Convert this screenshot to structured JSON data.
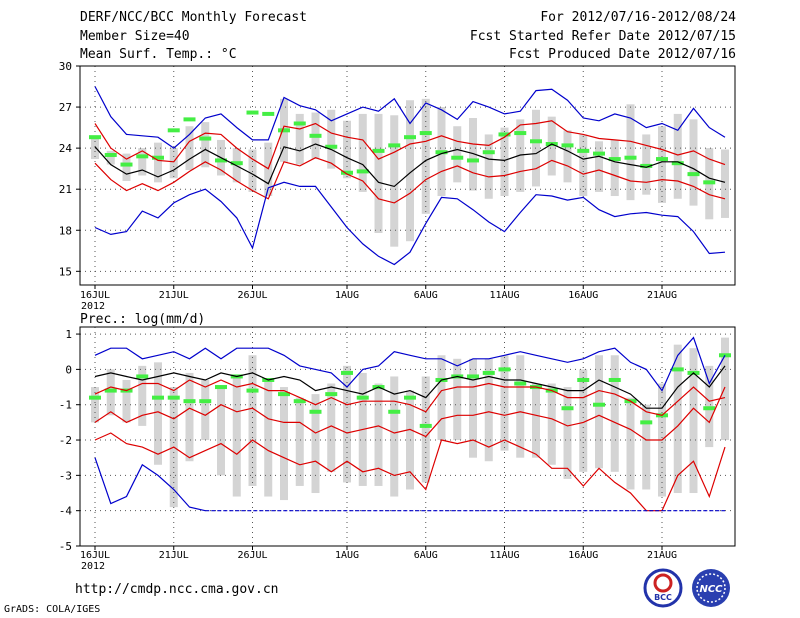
{
  "header": {
    "title": "DERF/NCC/BCC Monthly Forecast",
    "member_size": "Member Size=40",
    "variable_top": "Mean Surf. Temp.: °C",
    "for_range": "For 2012/07/16-2012/08/24",
    "started": "Fcst Started Refer Date 2012/07/15",
    "produced": "Fcst Produced Date 2012/07/16"
  },
  "footer": {
    "url": "http://cmdp.ncc.cma.gov.cn",
    "credit": "GrADS: COLA/IGES",
    "logo1_text": "BCC",
    "logo2_text": "NCC"
  },
  "colors": {
    "max_min": "#0000cc",
    "percentile": "#dd0000",
    "mean": "#000000",
    "obs_green": "#44ee44",
    "box_gray": "#d4d4d4"
  },
  "chart_data": [
    {
      "type": "line",
      "title": "Mean Surf. Temp.: °C",
      "x_ticks": [
        "16JUL\n2012",
        "21JUL",
        "26JUL",
        "1AUG",
        "6AUG",
        "11AUG",
        "16AUG",
        "21AUG"
      ],
      "x_tick_day_index": [
        0,
        5,
        10,
        16,
        21,
        26,
        31,
        36
      ],
      "days": 40,
      "ylim": [
        14,
        30
      ],
      "yticks": [
        15,
        18,
        21,
        24,
        27,
        30
      ],
      "series": [
        {
          "name": "max",
          "color": "blue",
          "values": [
            28.5,
            26.3,
            25.0,
            24.9,
            24.8,
            24.0,
            25.0,
            26.2,
            26.5,
            25.5,
            24.6,
            24.6,
            27.7,
            27.1,
            26.8,
            26.0,
            26.5,
            27.0,
            26.7,
            27.6,
            25.8,
            27.3,
            26.8,
            26.1,
            27.4,
            27.0,
            26.5,
            26.7,
            28.2,
            28.3,
            27.5,
            26.2,
            26.0,
            26.5,
            26.2,
            25.5,
            25.8,
            25.3,
            26.9,
            25.5,
            24.8
          ]
        },
        {
          "name": "p75",
          "color": "red",
          "values": [
            25.8,
            24.0,
            23.2,
            23.8,
            23.1,
            23.0,
            24.5,
            25.1,
            25.0,
            24.0,
            23.2,
            22.5,
            25.6,
            25.4,
            25.8,
            25.1,
            24.8,
            24.6,
            23.2,
            23.7,
            24.3,
            24.5,
            24.9,
            24.5,
            24.3,
            24.2,
            24.8,
            25.7,
            25.8,
            26.0,
            25.2,
            25.0,
            24.7,
            24.6,
            24.5,
            24.2,
            23.9,
            23.5,
            23.8,
            23.2,
            22.8
          ]
        },
        {
          "name": "mean",
          "color": "black",
          "values": [
            24.1,
            22.8,
            22.1,
            22.4,
            21.9,
            22.4,
            23.2,
            23.9,
            23.3,
            22.7,
            22.1,
            21.4,
            24.1,
            23.8,
            24.3,
            23.9,
            23.3,
            22.8,
            21.5,
            21.2,
            22.2,
            23.1,
            23.6,
            23.9,
            23.6,
            23.2,
            23.1,
            23.5,
            23.6,
            24.3,
            23.8,
            23.2,
            23.4,
            23.0,
            22.8,
            22.6,
            23.0,
            23.0,
            22.5,
            21.8,
            21.5
          ]
        },
        {
          "name": "p25",
          "color": "red",
          "values": [
            22.9,
            21.7,
            20.9,
            21.4,
            20.9,
            21.5,
            22.3,
            23.0,
            22.4,
            21.6,
            20.9,
            20.3,
            23.0,
            22.7,
            23.3,
            22.9,
            22.1,
            21.6,
            20.3,
            20.0,
            20.7,
            21.7,
            22.3,
            22.7,
            22.2,
            21.9,
            22.0,
            22.3,
            22.5,
            23.1,
            22.7,
            22.1,
            22.4,
            22.0,
            21.6,
            21.5,
            21.7,
            21.6,
            21.2,
            20.6,
            20.3
          ]
        },
        {
          "name": "min",
          "color": "blue",
          "values": [
            18.2,
            17.7,
            17.9,
            19.4,
            18.9,
            20.0,
            20.6,
            21.0,
            20.1,
            18.9,
            16.7,
            21.1,
            21.5,
            21.2,
            21.2,
            19.7,
            18.2,
            17.0,
            16.1,
            15.5,
            16.4,
            18.5,
            20.4,
            20.3,
            19.5,
            18.6,
            17.9,
            19.3,
            20.6,
            20.5,
            20.2,
            20.4,
            19.5,
            19.0,
            19.2,
            19.3,
            19.1,
            19.0,
            17.9,
            16.3,
            16.4
          ]
        }
      ],
      "box_ranges": [
        [
          23.2,
          24.8
        ],
        [
          22.8,
          23.8
        ],
        [
          21.6,
          23.6
        ],
        [
          22.0,
          24.0
        ],
        [
          21.5,
          24.4
        ],
        [
          21.8,
          24.0
        ],
        [
          22.4,
          25.6
        ],
        [
          22.6,
          25.9
        ],
        [
          22.0,
          24.6
        ],
        [
          21.5,
          24.0
        ],
        [
          20.8,
          23.9
        ],
        [
          20.5,
          24.4
        ],
        [
          23.0,
          27.6
        ],
        [
          22.8,
          26.5
        ],
        [
          23.2,
          26.6
        ],
        [
          22.5,
          26.8
        ],
        [
          21.8,
          26.0
        ],
        [
          20.8,
          26.5
        ],
        [
          17.8,
          26.5
        ],
        [
          16.8,
          26.4
        ],
        [
          17.2,
          27.5
        ],
        [
          19.2,
          27.6
        ],
        [
          20.5,
          27.0
        ],
        [
          21.5,
          25.6
        ],
        [
          20.9,
          26.2
        ],
        [
          20.3,
          25.0
        ],
        [
          20.5,
          25.5
        ],
        [
          20.8,
          26.1
        ],
        [
          21.2,
          26.8
        ],
        [
          22.0,
          26.3
        ],
        [
          21.5,
          25.3
        ],
        [
          20.5,
          25.0
        ],
        [
          20.8,
          24.5
        ],
        [
          20.5,
          24.6
        ],
        [
          20.2,
          27.2
        ],
        [
          20.6,
          25.0
        ],
        [
          20.0,
          25.6
        ],
        [
          20.3,
          26.5
        ],
        [
          19.8,
          26.1
        ],
        [
          18.8,
          24.0
        ],
        [
          18.9,
          23.9
        ]
      ],
      "green_marks": [
        [
          0,
          24.8
        ],
        [
          1,
          23.5
        ],
        [
          2,
          22.8
        ],
        [
          3,
          23.4
        ],
        [
          4,
          23.3
        ],
        [
          5,
          25.3
        ],
        [
          6,
          26.1
        ],
        [
          7,
          24.7
        ],
        [
          8,
          23.1
        ],
        [
          9,
          22.9
        ],
        [
          10,
          26.6
        ],
        [
          11,
          26.5
        ],
        [
          12,
          25.3
        ],
        [
          13,
          25.8
        ],
        [
          14,
          24.9
        ],
        [
          15,
          24.1
        ],
        [
          16,
          22.2
        ],
        [
          17,
          22.3
        ],
        [
          18,
          23.8
        ],
        [
          19,
          24.2
        ],
        [
          20,
          24.8
        ],
        [
          21,
          25.1
        ],
        [
          22,
          23.7
        ],
        [
          23,
          23.3
        ],
        [
          24,
          23.1
        ],
        [
          25,
          23.7
        ],
        [
          26,
          25.0
        ],
        [
          27,
          25.1
        ],
        [
          28,
          24.5
        ],
        [
          29,
          24.3
        ],
        [
          30,
          24.2
        ],
        [
          31,
          23.8
        ],
        [
          32,
          23.6
        ],
        [
          33,
          23.2
        ],
        [
          34,
          23.3
        ],
        [
          35,
          22.7
        ],
        [
          36,
          23.2
        ],
        [
          37,
          22.9
        ],
        [
          38,
          22.1
        ],
        [
          39,
          21.5
        ]
      ]
    },
    {
      "type": "line",
      "title": "Prec.: log(mm/d)",
      "x_ticks": [
        "16JUL\n2012",
        "21JUL",
        "26JUL",
        "1AUG",
        "6AUG",
        "11AUG",
        "16AUG",
        "21AUG"
      ],
      "x_tick_day_index": [
        0,
        5,
        10,
        16,
        21,
        26,
        31,
        36
      ],
      "days": 40,
      "ylim": [
        -5,
        1.2
      ],
      "yticks": [
        -5,
        -4,
        -3,
        -2,
        -1,
        0,
        1
      ],
      "series": [
        {
          "name": "max",
          "color": "blue",
          "values": [
            0.4,
            0.6,
            0.6,
            0.3,
            0.4,
            0.5,
            0.3,
            0.6,
            0.3,
            0.6,
            0.6,
            0.6,
            0.4,
            0.1,
            0.0,
            -0.1,
            -0.5,
            0.0,
            0.1,
            0.5,
            0.4,
            0.3,
            0.3,
            0.1,
            0.3,
            0.3,
            0.4,
            0.5,
            0.4,
            0.3,
            0.2,
            0.3,
            0.5,
            0.6,
            0.2,
            0.0,
            -0.6,
            0.4,
            0.9,
            -0.4,
            0.4
          ]
        },
        {
          "name": "p75",
          "color": "red",
          "values": [
            -0.7,
            -0.5,
            -0.6,
            -0.4,
            -0.4,
            -0.6,
            -0.3,
            -0.5,
            -0.3,
            -0.5,
            -0.4,
            -0.6,
            -0.6,
            -0.8,
            -1.0,
            -0.8,
            -1.0,
            -0.9,
            -0.9,
            -0.9,
            -1.0,
            -1.2,
            -0.6,
            -0.5,
            -0.5,
            -0.4,
            -0.5,
            -0.5,
            -0.5,
            -0.6,
            -0.8,
            -0.8,
            -0.6,
            -0.7,
            -0.9,
            -1.2,
            -1.3,
            -0.9,
            -0.5,
            -0.9,
            -0.8
          ]
        },
        {
          "name": "mean",
          "color": "black",
          "values": [
            -0.2,
            -0.1,
            -0.2,
            -0.3,
            -0.2,
            -0.1,
            -0.2,
            -0.3,
            -0.1,
            -0.2,
            -0.1,
            -0.3,
            -0.2,
            -0.3,
            -0.6,
            -0.5,
            -0.6,
            -0.7,
            -0.5,
            -0.7,
            -0.6,
            -0.8,
            -0.3,
            -0.2,
            -0.3,
            -0.2,
            -0.3,
            -0.3,
            -0.4,
            -0.5,
            -0.6,
            -0.6,
            -0.3,
            -0.5,
            -0.7,
            -1.1,
            -1.1,
            -0.5,
            -0.1,
            -0.5,
            0.1
          ]
        },
        {
          "name": "p25",
          "color": "red",
          "values": [
            -1.5,
            -1.2,
            -1.5,
            -1.3,
            -1.2,
            -1.4,
            -1.1,
            -1.3,
            -1.0,
            -1.2,
            -1.1,
            -1.4,
            -1.5,
            -1.5,
            -1.8,
            -1.6,
            -1.8,
            -1.7,
            -1.6,
            -1.8,
            -1.7,
            -1.9,
            -1.4,
            -1.3,
            -1.3,
            -1.2,
            -1.3,
            -1.2,
            -1.3,
            -1.4,
            -1.6,
            -1.5,
            -1.3,
            -1.5,
            -1.7,
            -2.0,
            -2.0,
            -1.6,
            -1.1,
            -1.5,
            -0.5
          ]
        },
        {
          "name": "min",
          "color": "blue",
          "values": [
            -2.5,
            -3.8,
            -3.6,
            -2.7,
            -3.0,
            -3.4,
            -3.9,
            -4.0,
            -4.0,
            -4.0,
            -4.0,
            -4.0,
            -4.0,
            -4.0,
            -4.0,
            -4.0,
            -4.0,
            -4.0,
            -4.0,
            -4.0,
            -4.0,
            -4.0,
            -4.0,
            -4.0,
            -4.0,
            -4.0,
            -4.0,
            -4.0,
            -4.0,
            -4.0,
            -4.0,
            -4.0,
            -4.0,
            -4.0,
            -4.0,
            -4.0,
            -4.0,
            -4.0,
            -4.0,
            -4.0,
            -4.0
          ]
        }
      ],
      "p10_series": [
        -2.0,
        -1.8,
        -2.1,
        -2.2,
        -2.4,
        -2.2,
        -2.5,
        -2.3,
        -2.1,
        -2.4,
        -2.0,
        -2.3,
        -2.5,
        -2.7,
        -2.6,
        -2.9,
        -2.6,
        -2.9,
        -2.8,
        -3.0,
        -2.9,
        -3.4,
        -2.0,
        -2.1,
        -2.0,
        -2.2,
        -2.0,
        -2.2,
        -2.4,
        -2.8,
        -2.8,
        -3.3,
        -2.8,
        -3.2,
        -3.5,
        -4.0,
        -4.0,
        -3.0,
        -2.6,
        -3.6,
        -2.2
      ],
      "box_ranges": [
        [
          -1.5,
          -0.5
        ],
        [
          -1.3,
          0.0
        ],
        [
          -1.5,
          -0.3
        ],
        [
          -1.6,
          0.1
        ],
        [
          -2.7,
          0.2
        ],
        [
          -3.9,
          -0.5
        ],
        [
          -2.6,
          -0.1
        ],
        [
          -2.0,
          -0.3
        ],
        [
          -3.0,
          -0.5
        ],
        [
          -3.6,
          -0.2
        ],
        [
          -3.3,
          0.4
        ],
        [
          -3.6,
          -0.3
        ],
        [
          -3.7,
          -0.5
        ],
        [
          -3.3,
          -0.8
        ],
        [
          -3.5,
          -0.7
        ],
        [
          -2.9,
          -0.4
        ],
        [
          -3.2,
          0.1
        ],
        [
          -3.3,
          -0.1
        ],
        [
          -3.3,
          -0.4
        ],
        [
          -3.6,
          -0.2
        ],
        [
          -3.4,
          -0.6
        ],
        [
          -3.2,
          -0.2
        ],
        [
          -2.0,
          0.4
        ],
        [
          -2.0,
          0.3
        ],
        [
          -2.5,
          0.3
        ],
        [
          -2.6,
          0.3
        ],
        [
          -2.3,
          0.4
        ],
        [
          -2.5,
          0.4
        ],
        [
          -2.5,
          -0.4
        ],
        [
          -2.7,
          -0.4
        ],
        [
          -3.1,
          -0.5
        ],
        [
          -2.9,
          0.0
        ],
        [
          -2.8,
          0.4
        ],
        [
          -2.9,
          0.4
        ],
        [
          -3.4,
          -0.8
        ],
        [
          -3.4,
          -1.0
        ],
        [
          -3.6,
          -0.4
        ],
        [
          -3.5,
          0.7
        ],
        [
          -3.5,
          0.6
        ],
        [
          -2.2,
          0.1
        ],
        [
          -2.0,
          0.9
        ]
      ],
      "green_marks": [
        [
          0,
          -0.8
        ],
        [
          1,
          -0.6
        ],
        [
          2,
          -0.6
        ],
        [
          3,
          -0.2
        ],
        [
          4,
          -0.8
        ],
        [
          5,
          -0.8
        ],
        [
          6,
          -0.9
        ],
        [
          7,
          -0.9
        ],
        [
          8,
          -0.5
        ],
        [
          9,
          -0.2
        ],
        [
          10,
          -0.6
        ],
        [
          11,
          -0.3
        ],
        [
          12,
          -0.7
        ],
        [
          13,
          -0.9
        ],
        [
          14,
          -1.2
        ],
        [
          15,
          -0.7
        ],
        [
          16,
          -0.1
        ],
        [
          17,
          -0.8
        ],
        [
          18,
          -0.5
        ],
        [
          19,
          -1.2
        ],
        [
          20,
          -0.8
        ],
        [
          21,
          -1.6
        ],
        [
          22,
          -0.3
        ],
        [
          23,
          -0.2
        ],
        [
          24,
          -0.2
        ],
        [
          25,
          -0.1
        ],
        [
          26,
          0.0
        ],
        [
          27,
          -0.4
        ],
        [
          28,
          -0.5
        ],
        [
          29,
          -0.6
        ],
        [
          30,
          -1.1
        ],
        [
          31,
          -0.3
        ],
        [
          32,
          -1.0
        ],
        [
          33,
          -0.3
        ],
        [
          34,
          -0.9
        ],
        [
          35,
          -1.5
        ],
        [
          36,
          -1.3
        ],
        [
          37,
          0.0
        ],
        [
          38,
          -0.1
        ],
        [
          39,
          -1.1
        ],
        [
          40,
          0.4
        ]
      ]
    }
  ]
}
